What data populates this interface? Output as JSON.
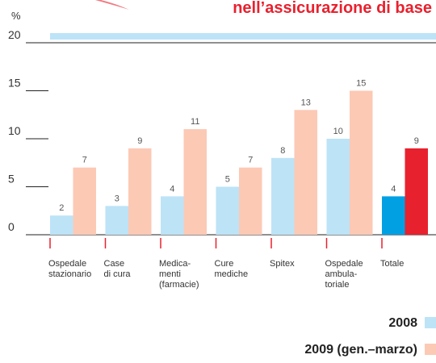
{
  "chart_data": {
    "type": "bar",
    "title": "nell’assicurazione di base",
    "y_label": "%",
    "categories": [
      "Ospedale\nstazionario",
      "Case\ndi cura",
      "Medica-\nmenti\n(farmacie)",
      "Cure\nmediche",
      "Spitex",
      "Ospedale\nambula-\ntoriale",
      "Totale"
    ],
    "series": [
      {
        "name": "2008",
        "color": "#bde3f7",
        "colors": [
          "#bde3f7",
          "#bde3f7",
          "#bde3f7",
          "#bde3f7",
          "#bde3f7",
          "#bde3f7",
          "#00a0e3"
        ],
        "values": [
          2,
          3,
          4,
          5,
          8,
          10,
          4
        ]
      },
      {
        "name": "2009 (gen.–marzo)",
        "color": "#fcc9b5",
        "colors": [
          "#fcc9b5",
          "#fcc9b5",
          "#fcc9b5",
          "#fcc9b5",
          "#fcc9b5",
          "#fcc9b5",
          "#e8212e"
        ],
        "values": [
          7,
          9,
          11,
          7,
          13,
          15,
          9
        ]
      }
    ],
    "ylim": [
      0,
      20
    ],
    "yticks": [
      0,
      5,
      10,
      15,
      20
    ],
    "legend": "bottom-right"
  }
}
